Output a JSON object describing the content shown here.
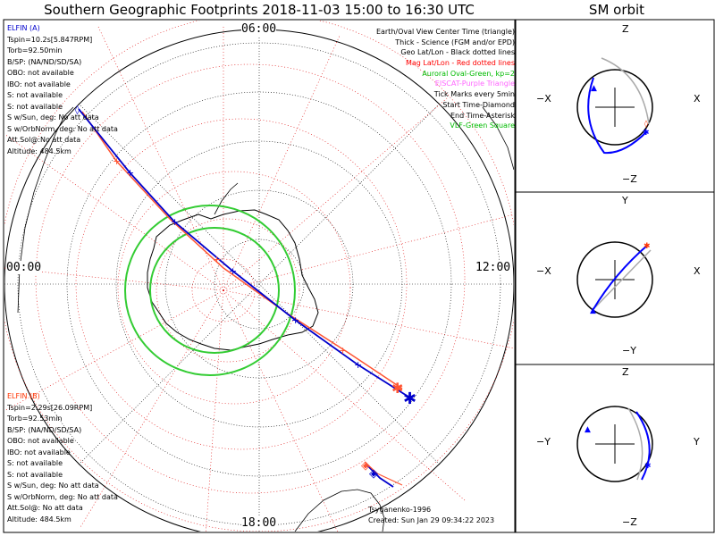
{
  "title": "Southern Geographic Footprints 2018-11-03 15:00 to 16:30 UTC",
  "sm_title": "SM orbit",
  "clock_labels": {
    "top": "06:00",
    "left": "00:00",
    "right": "12:00",
    "bottom": "18:00"
  },
  "elfin_a": {
    "name": "ELFIN (A)",
    "color": "#0000cc",
    "lines": [
      "Tspin=10.2s[5.847RPM]",
      "Torb=92.50min",
      "B/SP: (NA/ND/SD/SA)",
      "OBO: not available",
      "IBO: not available",
      "S: not available",
      "S: not available",
      "S w/Sun, deg: No att data",
      "S w/OrbNorm, deg: No att data",
      "Att.Sol@:No att data",
      "Altitude: 484.5km"
    ]
  },
  "elfin_b": {
    "name": "ELFIN (B)",
    "color": "#ff3300",
    "lines": [
      "Tspin=2.29s[26.09RPM]",
      "Torb=92.53min",
      "B/SP: (NA/ND/SD/SA)",
      "OBO: not available",
      "IBO: not available",
      "S: not available",
      "S: not available",
      "S w/Sun, deg: No att data",
      "S w/OrbNorm, deg: No att data",
      "Att.Sol@: No att data",
      "Altitude: 484.5km"
    ]
  },
  "legend": [
    {
      "text": "Earth/Oval View Center Time (triangle)",
      "color": "#000000"
    },
    {
      "text": "Thick - Science (FGM and/or EPD)",
      "color": "#000000"
    },
    {
      "text": "Geo Lat/Lon - Black dotted lines",
      "color": "#000000"
    },
    {
      "text": "Mag Lat/Lon - Red dotted lines",
      "color": "#ff0000"
    },
    {
      "text": "Auroral Oval-Green, kp=2",
      "color": "#00bb00"
    },
    {
      "text": "EISCAT-Purple Triangle",
      "color": "#ff66ff"
    },
    {
      "text": "Tick Marks every 5min",
      "color": "#000000"
    },
    {
      "text": "Start Time-Diamond",
      "color": "#000000"
    },
    {
      "text": "End Time-Asterisk",
      "color": "#000000"
    },
    {
      "text": "VLF-Green Square",
      "color": "#00bb00"
    }
  ],
  "footer": {
    "model": "Tsyganenko-1996",
    "created": "Created: Sun Jan 29 09:34:22 2023"
  },
  "orbit_panels": [
    {
      "top": "Z",
      "bottom": "−Z",
      "left": "−X",
      "right": "X"
    },
    {
      "top": "Y",
      "bottom": "−Y",
      "left": "−X",
      "right": "X"
    },
    {
      "top": "Z",
      "bottom": "−Z",
      "left": "−Y",
      "right": "Y"
    }
  ]
}
